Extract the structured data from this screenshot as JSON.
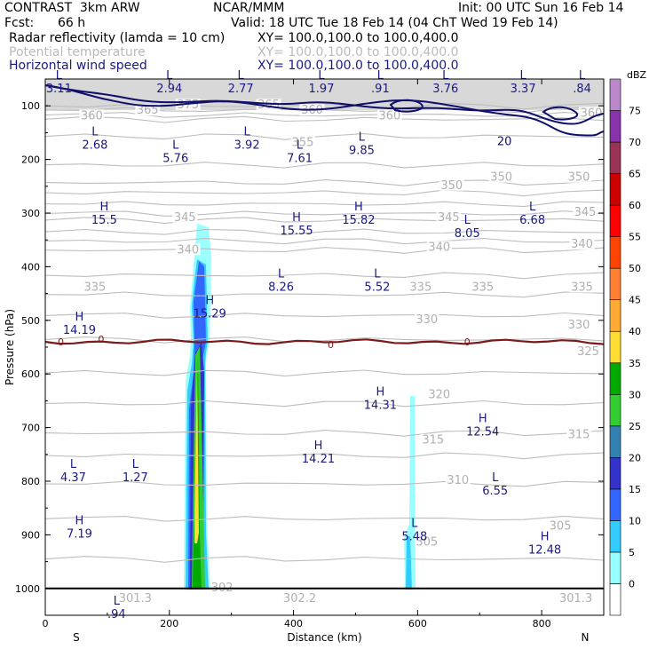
{
  "header": {
    "model": "CONTRAST  3km ARW",
    "org": "NCAR/MMM",
    "init": "Init: 00 UTC Sun 16 Feb 14",
    "fcst_label": "Fcst:",
    "fcst_value": "66 h",
    "valid": "Valid: 18 UTC Tue 18 Feb 14 (04 ChT Wed 19 Feb 14)",
    "fields": [
      {
        "name": "Radar reflectivity (lamda = 10 cm)",
        "xy": "XY= 100.0,100.0 to 100.0,400.0",
        "color": "#000000"
      },
      {
        "name": "Potential temperature",
        "xy": "XY= 100.0,100.0 to 100.0,400.0",
        "color": "#bbbbbb"
      },
      {
        "name": "Horizontal wind speed",
        "xy": "XY= 100.0,100.0 to 100.0,400.0",
        "color": "#1a1a80"
      }
    ]
  },
  "chart_data": {
    "type": "heatmap",
    "xlabel": "Distance (km)",
    "ylabel": "Pressure (hPa)",
    "xlim": [
      0,
      900
    ],
    "ylim": [
      1050,
      50
    ],
    "x_ticks": [
      "0",
      "200",
      "400",
      "600",
      "800"
    ],
    "y_ticks": [
      "100",
      "200",
      "300",
      "400",
      "500",
      "600",
      "700",
      "800",
      "900",
      "1000"
    ],
    "end_labels": {
      "left": "S",
      "right": "N"
    },
    "colorbar": {
      "unit": "dBZ",
      "levels": [
        "0",
        "5",
        "10",
        "15",
        "20",
        "25",
        "30",
        "35",
        "40",
        "45",
        "50",
        "55",
        "60",
        "65",
        "70",
        "75"
      ],
      "colors": [
        "#ffffff",
        "#99ffff",
        "#33ccff",
        "#3366ff",
        "#3333cc",
        "#3380b3",
        "#33cc33",
        "#00aa00",
        "#ffdd33",
        "#ffaa33",
        "#ff8033",
        "#ff4400",
        "#ff0000",
        "#cc0000",
        "#993355",
        "#8833aa",
        "#bb88cc"
      ]
    },
    "theta_labels": [
      {
        "v": "360",
        "x": 75,
        "p": 120
      },
      {
        "v": "365",
        "x": 165,
        "p": 110
      },
      {
        "v": "375",
        "x": 230,
        "p": 100
      },
      {
        "v": "365",
        "x": 360,
        "p": 100
      },
      {
        "v": "360",
        "x": 430,
        "p": 110
      },
      {
        "v": "360",
        "x": 555,
        "p": 120
      },
      {
        "v": "360",
        "x": 880,
        "p": 115
      },
      {
        "v": "355",
        "x": 415,
        "p": 170
      },
      {
        "v": "350",
        "x": 655,
        "p": 250
      },
      {
        "v": "350",
        "x": 735,
        "p": 235
      },
      {
        "v": "350",
        "x": 860,
        "p": 235
      },
      {
        "v": "345",
        "x": 225,
        "p": 310
      },
      {
        "v": "345",
        "x": 650,
        "p": 310
      },
      {
        "v": "345",
        "x": 870,
        "p": 300
      },
      {
        "v": "340",
        "x": 230,
        "p": 370
      },
      {
        "v": "340",
        "x": 635,
        "p": 365
      },
      {
        "v": "340",
        "x": 865,
        "p": 360
      },
      {
        "v": "335",
        "x": 80,
        "p": 440
      },
      {
        "v": "335",
        "x": 605,
        "p": 440
      },
      {
        "v": "335",
        "x": 705,
        "p": 440
      },
      {
        "v": "335",
        "x": 865,
        "p": 440
      },
      {
        "v": "330",
        "x": 615,
        "p": 500
      },
      {
        "v": "330",
        "x": 860,
        "p": 510
      },
      {
        "v": "325",
        "x": 875,
        "p": 560
      },
      {
        "v": "320",
        "x": 635,
        "p": 640
      },
      {
        "v": "315",
        "x": 625,
        "p": 725
      },
      {
        "v": "315",
        "x": 860,
        "p": 715
      },
      {
        "v": "310",
        "x": 665,
        "p": 800
      },
      {
        "v": "305",
        "x": 615,
        "p": 915
      },
      {
        "v": "305",
        "x": 830,
        "p": 885
      },
      {
        "v": "302",
        "x": 285,
        "p": 1000
      },
      {
        "v": "301.3",
        "x": 145,
        "p": 1020
      },
      {
        "v": "302.2",
        "x": 410,
        "p": 1020
      },
      {
        "v": "301.3",
        "x": 855,
        "p": 1020
      }
    ],
    "wind_labels": [
      {
        "v": "20",
        "x": 740,
        "p": 165
      }
    ],
    "hl_labels": [
      {
        "t": "L",
        "v": "3.11",
        "x": 22,
        "p": 50
      },
      {
        "t": "L",
        "v": "2.94",
        "x": 200,
        "p": 50
      },
      {
        "t": "L",
        "v": "2.77",
        "x": 315,
        "p": 50
      },
      {
        "t": "L",
        "v": "1.97",
        "x": 445,
        "p": 50
      },
      {
        "t": "L",
        "v": ".91",
        "x": 540,
        "p": 50
      },
      {
        "t": "L",
        "v": "3.76",
        "x": 645,
        "p": 50
      },
      {
        "t": "L",
        "v": "3.37",
        "x": 770,
        "p": 50
      },
      {
        "t": "L",
        "v": ".84",
        "x": 865,
        "p": 50
      },
      {
        "t": "L",
        "v": "2.68",
        "x": 80,
        "p": 155
      },
      {
        "t": "L",
        "v": "3.92",
        "x": 325,
        "p": 155
      },
      {
        "t": "L",
        "v": "5.76",
        "x": 210,
        "p": 180
      },
      {
        "t": "L",
        "v": "7.61",
        "x": 410,
        "p": 180
      },
      {
        "t": "L",
        "v": "9.85",
        "x": 510,
        "p": 165
      },
      {
        "t": "H",
        "v": "15.5",
        "x": 95,
        "p": 295
      },
      {
        "t": "H",
        "v": "15.82",
        "x": 505,
        "p": 295
      },
      {
        "t": "L",
        "v": "6.68",
        "x": 785,
        "p": 295
      },
      {
        "t": "H",
        "v": "15.55",
        "x": 405,
        "p": 315
      },
      {
        "t": "L",
        "v": "8.05",
        "x": 680,
        "p": 320
      },
      {
        "t": "L",
        "v": "8.26",
        "x": 380,
        "p": 420
      },
      {
        "t": "L",
        "v": "5.52",
        "x": 535,
        "p": 420
      },
      {
        "t": "H",
        "v": "15.29",
        "x": 265,
        "p": 470
      },
      {
        "t": "H",
        "v": "14.19",
        "x": 55,
        "p": 500
      },
      {
        "t": "H",
        "v": "14.31",
        "x": 540,
        "p": 640
      },
      {
        "t": "H",
        "v": "12.54",
        "x": 705,
        "p": 690
      },
      {
        "t": "H",
        "v": "14.21",
        "x": 440,
        "p": 740
      },
      {
        "t": "L",
        "v": "4.37",
        "x": 45,
        "p": 775
      },
      {
        "t": "L",
        "v": "1.27",
        "x": 145,
        "p": 775
      },
      {
        "t": "L",
        "v": "6.55",
        "x": 725,
        "p": 800
      },
      {
        "t": "H",
        "v": "7.19",
        "x": 55,
        "p": 880
      },
      {
        "t": "L",
        "v": "5.48",
        "x": 595,
        "p": 885
      },
      {
        "t": "H",
        "v": "12.48",
        "x": 805,
        "p": 910
      },
      {
        "t": "L",
        "v": ".94",
        "x": 115,
        "p": 1030
      }
    ],
    "zero_isotherm_labels": [
      {
        "v": "0",
        "x": 25,
        "p": 540
      },
      {
        "v": "0",
        "x": 90,
        "p": 535
      },
      {
        "v": "0",
        "x": 460,
        "p": 545
      },
      {
        "v": "0",
        "x": 680,
        "p": 540
      }
    ]
  }
}
